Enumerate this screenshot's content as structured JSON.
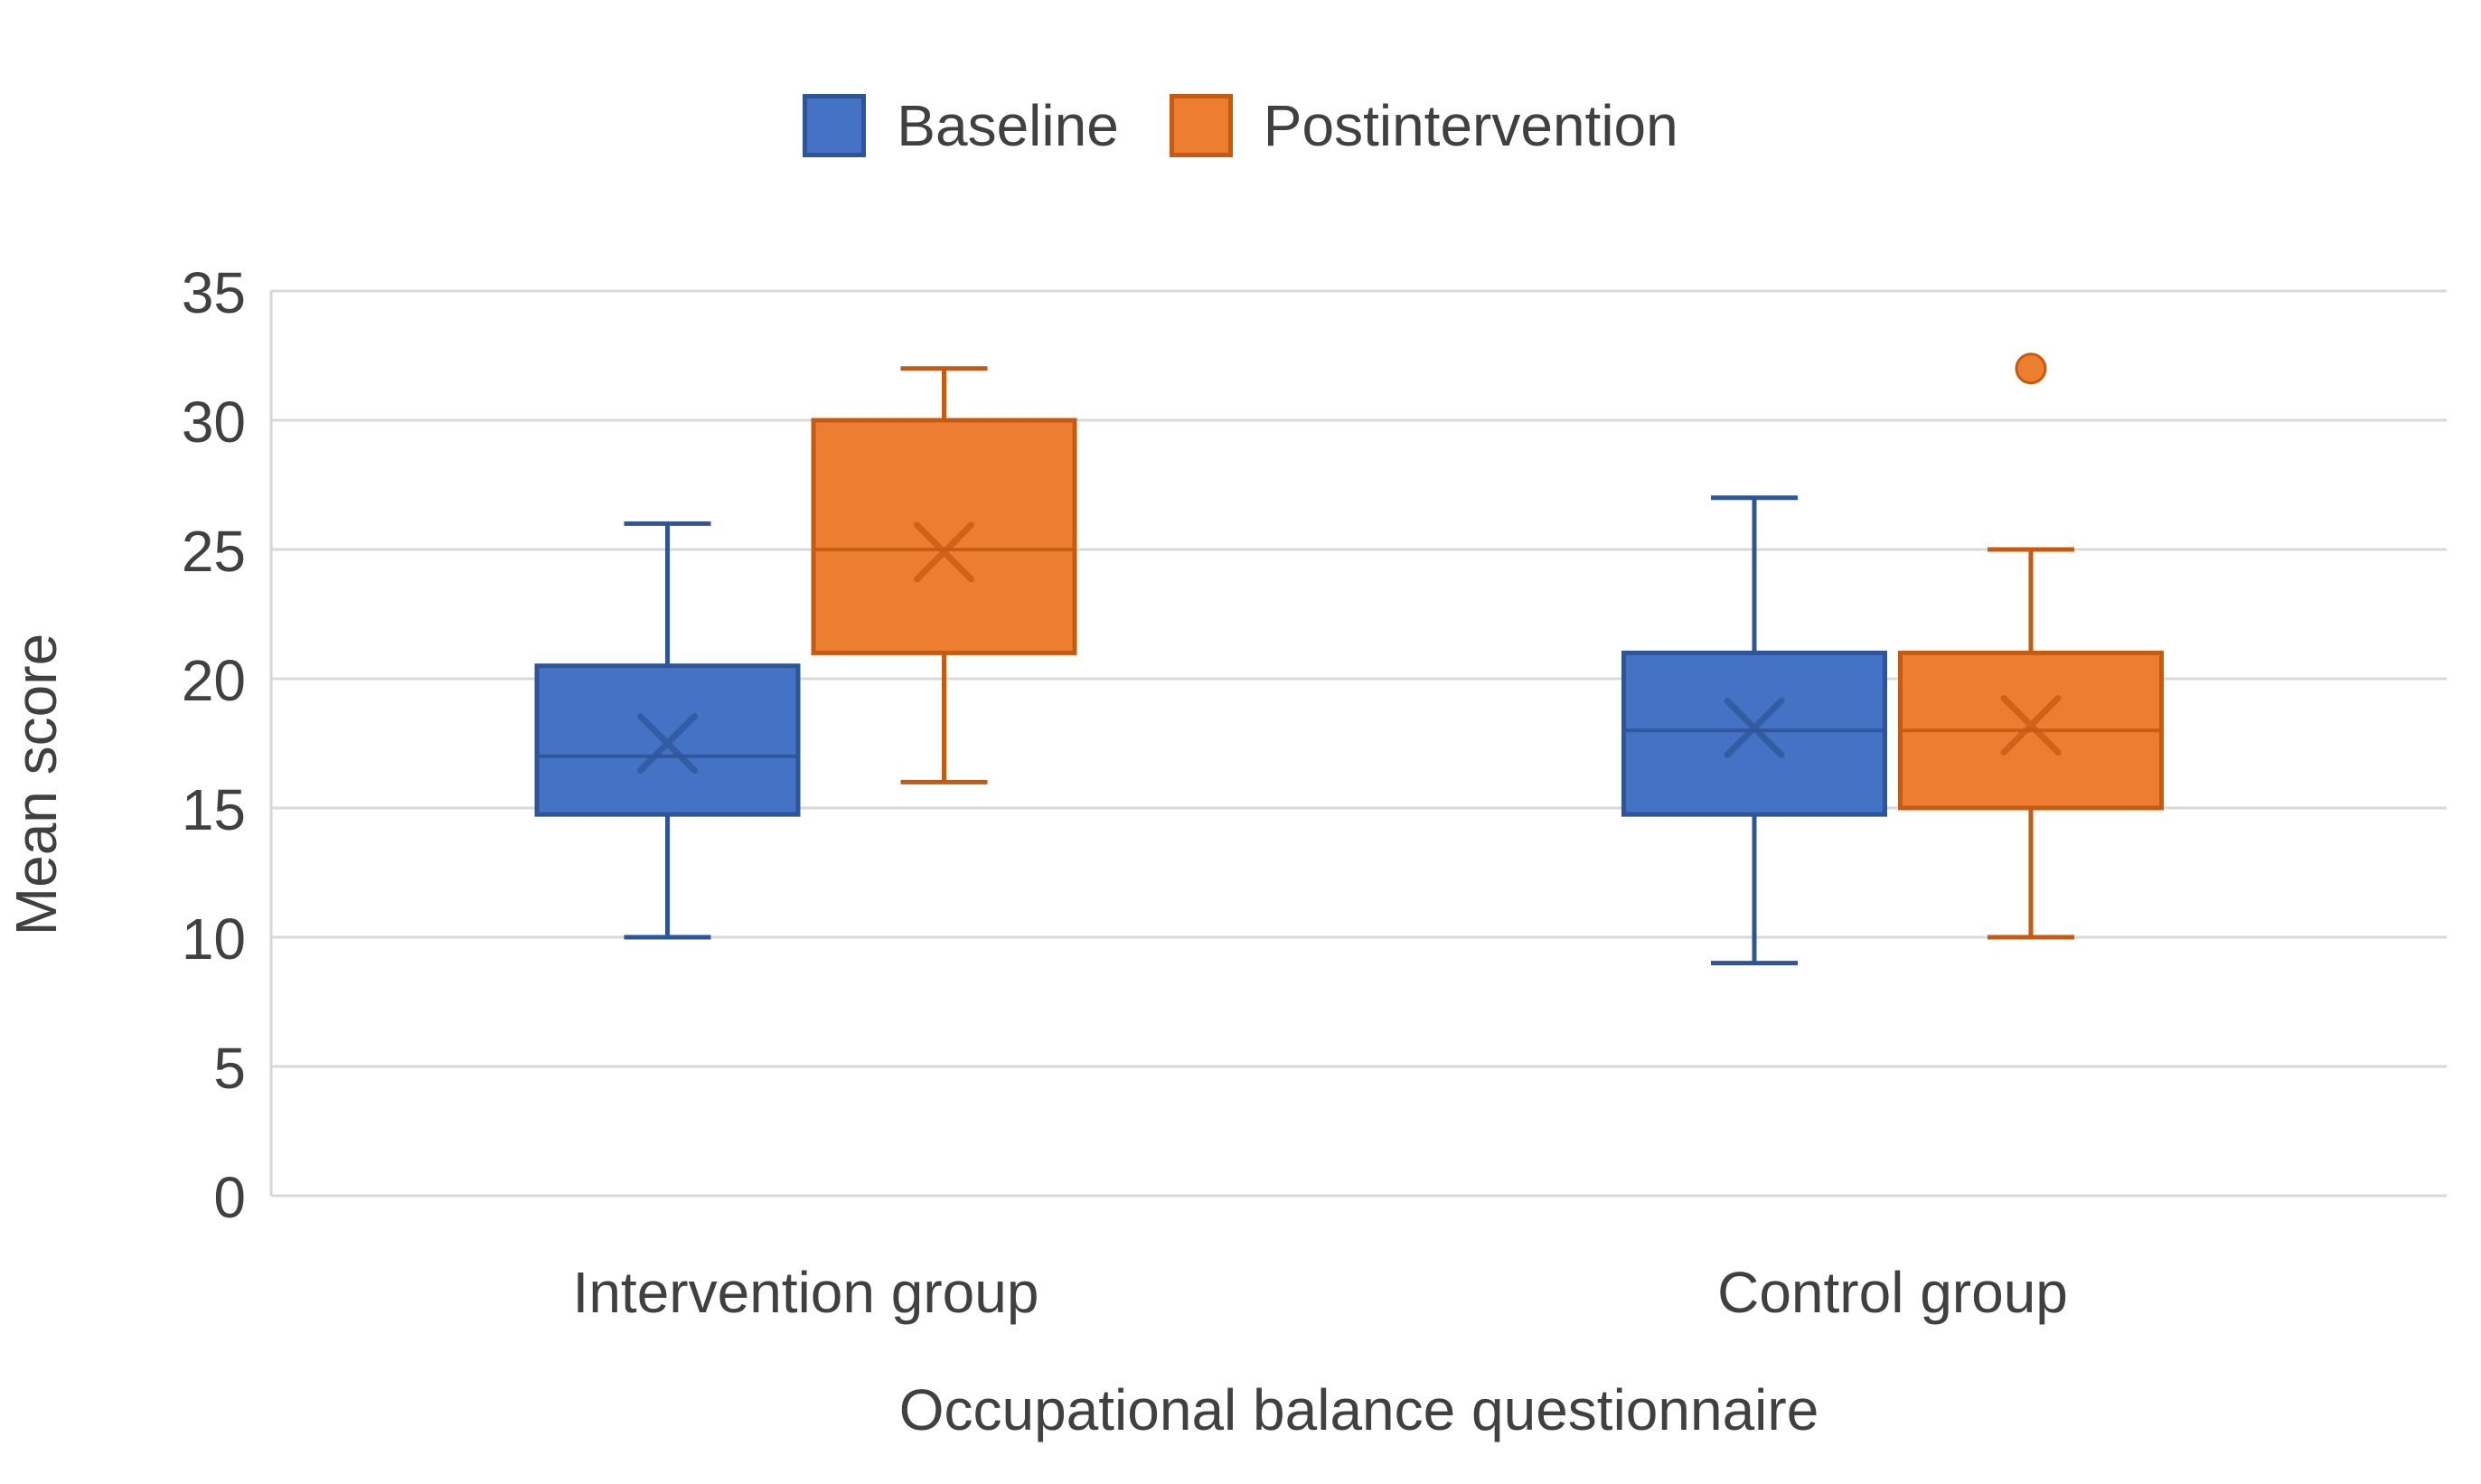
{
  "chart_data": {
    "type": "box",
    "title": "",
    "categories": [
      "Intervention group",
      "Control group"
    ],
    "series": [
      {
        "name": "Baseline",
        "fill": "#4472C4",
        "border": "#2E5597",
        "boxes": [
          {
            "category": "Intervention group",
            "min": 10,
            "q1": 14.75,
            "median": 17,
            "q3": 20.5,
            "max": 26,
            "mean": 17.5,
            "outliers": []
          },
          {
            "category": "Control group",
            "min": 9,
            "q1": 14.75,
            "median": 18,
            "q3": 21,
            "max": 27,
            "mean": 18.1,
            "outliers": []
          }
        ]
      },
      {
        "name": "Postintervention",
        "fill": "#ED7D31",
        "border": "#C55A11",
        "boxes": [
          {
            "category": "Intervention group",
            "min": 16,
            "q1": 21,
            "median": 25,
            "q3": 30,
            "max": 32,
            "mean": 24.9,
            "outliers": []
          },
          {
            "category": "Control group",
            "min": 10,
            "q1": 15,
            "median": 18,
            "q3": 21,
            "max": 25,
            "mean": 18.2,
            "outliers": [
              32
            ]
          }
        ]
      }
    ],
    "xlabel": "Occupational balance questionnaire",
    "ylabel": "Mean score",
    "ylim": [
      0,
      35
    ],
    "yticks": [
      0,
      5,
      10,
      15,
      20,
      25,
      30,
      35
    ],
    "grid": true,
    "legend_position": "top",
    "colors": {
      "gridline": "#D9D9D9",
      "axis_line": "#D6D6D6",
      "text": "#404040",
      "background": "#FFFFFF"
    }
  }
}
